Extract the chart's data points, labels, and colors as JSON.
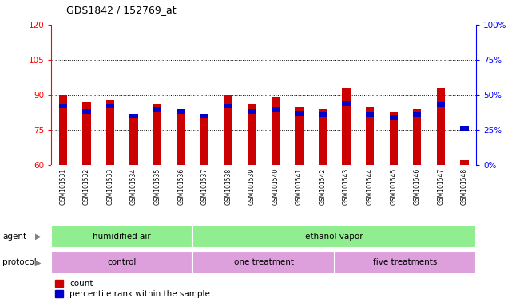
{
  "title": "GDS1842 / 152769_at",
  "samples": [
    "GSM101531",
    "GSM101532",
    "GSM101533",
    "GSM101534",
    "GSM101535",
    "GSM101536",
    "GSM101537",
    "GSM101538",
    "GSM101539",
    "GSM101540",
    "GSM101541",
    "GSM101542",
    "GSM101543",
    "GSM101544",
    "GSM101545",
    "GSM101546",
    "GSM101547",
    "GSM101548"
  ],
  "red_values": [
    90,
    87,
    88,
    82,
    86,
    83,
    82,
    90,
    86,
    89,
    85,
    84,
    93,
    85,
    83,
    84,
    93,
    62
  ],
  "blue_pct": [
    42,
    38,
    42,
    35,
    40,
    38,
    35,
    42,
    38,
    40,
    37,
    36,
    44,
    36,
    34,
    36,
    43,
    26
  ],
  "y_min": 60,
  "y_max": 120,
  "y_ticks": [
    60,
    75,
    90,
    105,
    120
  ],
  "y2_ticks": [
    0,
    25,
    50,
    75,
    100
  ],
  "y2_tick_labels": [
    "0%",
    "25%",
    "50%",
    "75%",
    "100%"
  ],
  "bar_color": "#CC0000",
  "blue_color": "#0000CC",
  "bar_width": 0.35
}
